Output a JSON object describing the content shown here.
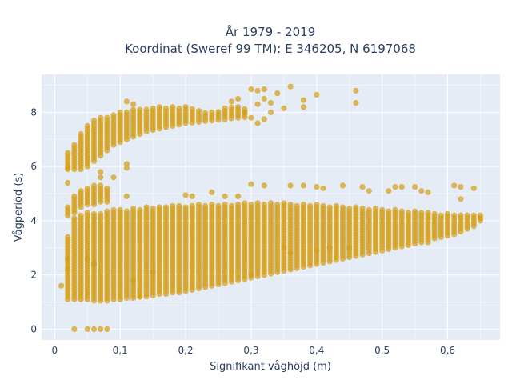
{
  "chart_data": {
    "type": "scatter",
    "title_lines": [
      "År 1979 - 2019",
      "Koordinat (Sweref 99 TM): E 346205, N 6197068"
    ],
    "xlabel": "Signifikant våghöjd (m)",
    "ylabel": "Vågperiod (s)",
    "xlim": [
      -0.02,
      0.68
    ],
    "ylim": [
      -0.4,
      9.4
    ],
    "x_ticks": [
      0,
      0.1,
      0.2,
      0.3,
      0.4,
      0.5,
      0.6
    ],
    "x_tick_labels": [
      "0",
      "0,1",
      "0,2",
      "0,3",
      "0,4",
      "0,5",
      "0,6"
    ],
    "y_ticks": [
      0,
      2,
      4,
      6,
      8
    ],
    "y_tick_labels": [
      "0",
      "2",
      "4",
      "6",
      "8"
    ],
    "grid": true,
    "marker_color": "#d4a017",
    "background": "#e5ecf6",
    "x_step": 0.01,
    "lower_band": {
      "x": [
        0.02,
        0.03,
        0.04,
        0.05,
        0.06,
        0.07,
        0.08,
        0.09,
        0.1,
        0.11,
        0.12,
        0.13,
        0.14,
        0.15,
        0.16,
        0.17,
        0.18,
        0.19,
        0.2,
        0.21,
        0.22,
        0.23,
        0.24,
        0.25,
        0.26,
        0.27,
        0.28,
        0.29,
        0.3,
        0.31,
        0.32,
        0.33,
        0.34,
        0.35,
        0.36,
        0.37,
        0.38,
        0.39,
        0.4,
        0.41,
        0.42,
        0.43,
        0.44,
        0.45,
        0.46,
        0.47,
        0.48,
        0.49,
        0.5,
        0.51,
        0.52,
        0.53,
        0.54,
        0.55,
        0.56,
        0.57,
        0.58,
        0.59,
        0.6,
        0.61,
        0.62,
        0.63,
        0.64,
        0.65
      ],
      "y_min": [
        1.1,
        1.1,
        1.1,
        1.1,
        1.05,
        1.05,
        1.05,
        1.1,
        1.1,
        1.15,
        1.15,
        1.2,
        1.2,
        1.25,
        1.3,
        1.3,
        1.35,
        1.35,
        1.4,
        1.45,
        1.5,
        1.55,
        1.6,
        1.65,
        1.7,
        1.75,
        1.8,
        1.85,
        1.9,
        1.95,
        2.0,
        2.05,
        2.1,
        2.15,
        2.2,
        2.25,
        2.3,
        2.35,
        2.4,
        2.45,
        2.5,
        2.55,
        2.6,
        2.65,
        2.7,
        2.75,
        2.8,
        2.85,
        2.9,
        2.95,
        3.0,
        3.05,
        3.1,
        3.15,
        3.2,
        3.3,
        3.35,
        3.4,
        3.45,
        3.5,
        3.6,
        3.7,
        3.8,
        4.0
      ],
      "y_max": [
        3.4,
        4.1,
        4.2,
        4.3,
        4.3,
        4.3,
        4.35,
        4.4,
        4.4,
        4.4,
        4.45,
        4.45,
        4.5,
        4.5,
        4.5,
        4.5,
        4.55,
        4.55,
        4.55,
        4.55,
        4.6,
        4.6,
        4.6,
        4.6,
        4.6,
        4.6,
        4.65,
        4.65,
        4.65,
        4.65,
        4.65,
        4.65,
        4.65,
        4.65,
        4.65,
        4.6,
        4.6,
        4.6,
        4.6,
        4.6,
        4.55,
        4.55,
        4.5,
        4.5,
        4.5,
        4.45,
        4.45,
        4.45,
        4.4,
        4.4,
        4.4,
        4.35,
        4.35,
        4.35,
        4.3,
        4.3,
        4.3,
        4.25,
        4.25,
        4.25,
        4.2,
        4.2,
        4.2,
        4.2
      ]
    },
    "upper_band": {
      "x": [
        0.02,
        0.03,
        0.04,
        0.05,
        0.06,
        0.07,
        0.08,
        0.09,
        0.1,
        0.11,
        0.12,
        0.13,
        0.14,
        0.15,
        0.16,
        0.17,
        0.18,
        0.19,
        0.2,
        0.21,
        0.22,
        0.23,
        0.24,
        0.25,
        0.26,
        0.27,
        0.28,
        0.29
      ],
      "y_min": [
        5.9,
        5.9,
        5.9,
        6.0,
        6.2,
        6.4,
        6.6,
        6.8,
        6.9,
        7.0,
        7.1,
        7.2,
        7.3,
        7.35,
        7.4,
        7.45,
        7.5,
        7.55,
        7.6,
        7.62,
        7.65,
        7.68,
        7.7,
        7.72,
        7.75,
        7.78,
        7.8,
        7.82
      ],
      "y_max": [
        6.5,
        6.8,
        7.2,
        7.5,
        7.7,
        7.8,
        7.85,
        7.9,
        8.0,
        8.05,
        8.1,
        8.15,
        8.15,
        8.2,
        8.2,
        8.2,
        8.25,
        8.2,
        8.2,
        8.15,
        8.1,
        8.05,
        8.05,
        8.1,
        8.15,
        8.2,
        8.2,
        8.2
      ]
    },
    "mid_cluster": {
      "x": [
        0.02,
        0.03,
        0.04,
        0.05,
        0.06,
        0.07,
        0.08
      ],
      "y_min": [
        4.2,
        4.3,
        4.5,
        4.6,
        4.6,
        4.7,
        4.7
      ],
      "y_max": [
        4.5,
        4.9,
        5.1,
        5.2,
        5.3,
        5.3,
        5.2
      ]
    },
    "extra_points": [
      [
        0.01,
        1.6
      ],
      [
        0.02,
        2.2
      ],
      [
        0.02,
        2.6
      ],
      [
        0.03,
        0.0
      ],
      [
        0.05,
        0.0
      ],
      [
        0.06,
        0.0
      ],
      [
        0.07,
        0.0
      ],
      [
        0.08,
        0.0
      ],
      [
        0.02,
        5.4
      ],
      [
        0.02,
        5.95
      ],
      [
        0.07,
        5.8
      ],
      [
        0.07,
        5.6
      ],
      [
        0.09,
        5.6
      ],
      [
        0.11,
        6.1
      ],
      [
        0.11,
        5.95
      ],
      [
        0.11,
        4.9
      ],
      [
        0.13,
        1.2
      ],
      [
        0.11,
        8.4
      ],
      [
        0.12,
        8.3
      ],
      [
        0.3,
        8.85
      ],
      [
        0.31,
        8.8
      ],
      [
        0.32,
        8.85
      ],
      [
        0.34,
        8.7
      ],
      [
        0.36,
        8.95
      ],
      [
        0.32,
        8.5
      ],
      [
        0.33,
        8.35
      ],
      [
        0.31,
        8.3
      ],
      [
        0.33,
        8.0
      ],
      [
        0.35,
        8.15
      ],
      [
        0.38,
        8.45
      ],
      [
        0.38,
        8.2
      ],
      [
        0.4,
        8.65
      ],
      [
        0.46,
        8.8
      ],
      [
        0.46,
        8.35
      ],
      [
        0.27,
        8.4
      ],
      [
        0.28,
        8.5
      ],
      [
        0.29,
        8.0
      ],
      [
        0.3,
        7.8
      ],
      [
        0.31,
        7.6
      ],
      [
        0.32,
        7.75
      ],
      [
        0.3,
        5.35
      ],
      [
        0.32,
        5.3
      ],
      [
        0.36,
        5.3
      ],
      [
        0.38,
        5.3
      ],
      [
        0.4,
        5.25
      ],
      [
        0.41,
        5.2
      ],
      [
        0.44,
        5.3
      ],
      [
        0.47,
        5.25
      ],
      [
        0.48,
        5.1
      ],
      [
        0.51,
        5.1
      ],
      [
        0.52,
        5.25
      ],
      [
        0.53,
        5.25
      ],
      [
        0.55,
        5.25
      ],
      [
        0.56,
        5.1
      ],
      [
        0.57,
        5.05
      ],
      [
        0.61,
        5.3
      ],
      [
        0.62,
        5.25
      ],
      [
        0.64,
        5.2
      ],
      [
        0.62,
        4.8
      ],
      [
        0.2,
        4.95
      ],
      [
        0.21,
        4.9
      ],
      [
        0.24,
        5.05
      ],
      [
        0.26,
        4.9
      ],
      [
        0.28,
        4.9
      ],
      [
        0.3,
        2.0
      ],
      [
        0.35,
        3.0
      ],
      [
        0.36,
        2.8
      ],
      [
        0.4,
        2.9
      ],
      [
        0.42,
        3.0
      ],
      [
        0.45,
        3.0
      ],
      [
        0.57,
        3.2
      ],
      [
        0.65,
        4.1
      ],
      [
        0.06,
        2.4
      ],
      [
        0.05,
        2.6
      ],
      [
        0.12,
        1.8
      ],
      [
        0.15,
        2.1
      ]
    ]
  }
}
